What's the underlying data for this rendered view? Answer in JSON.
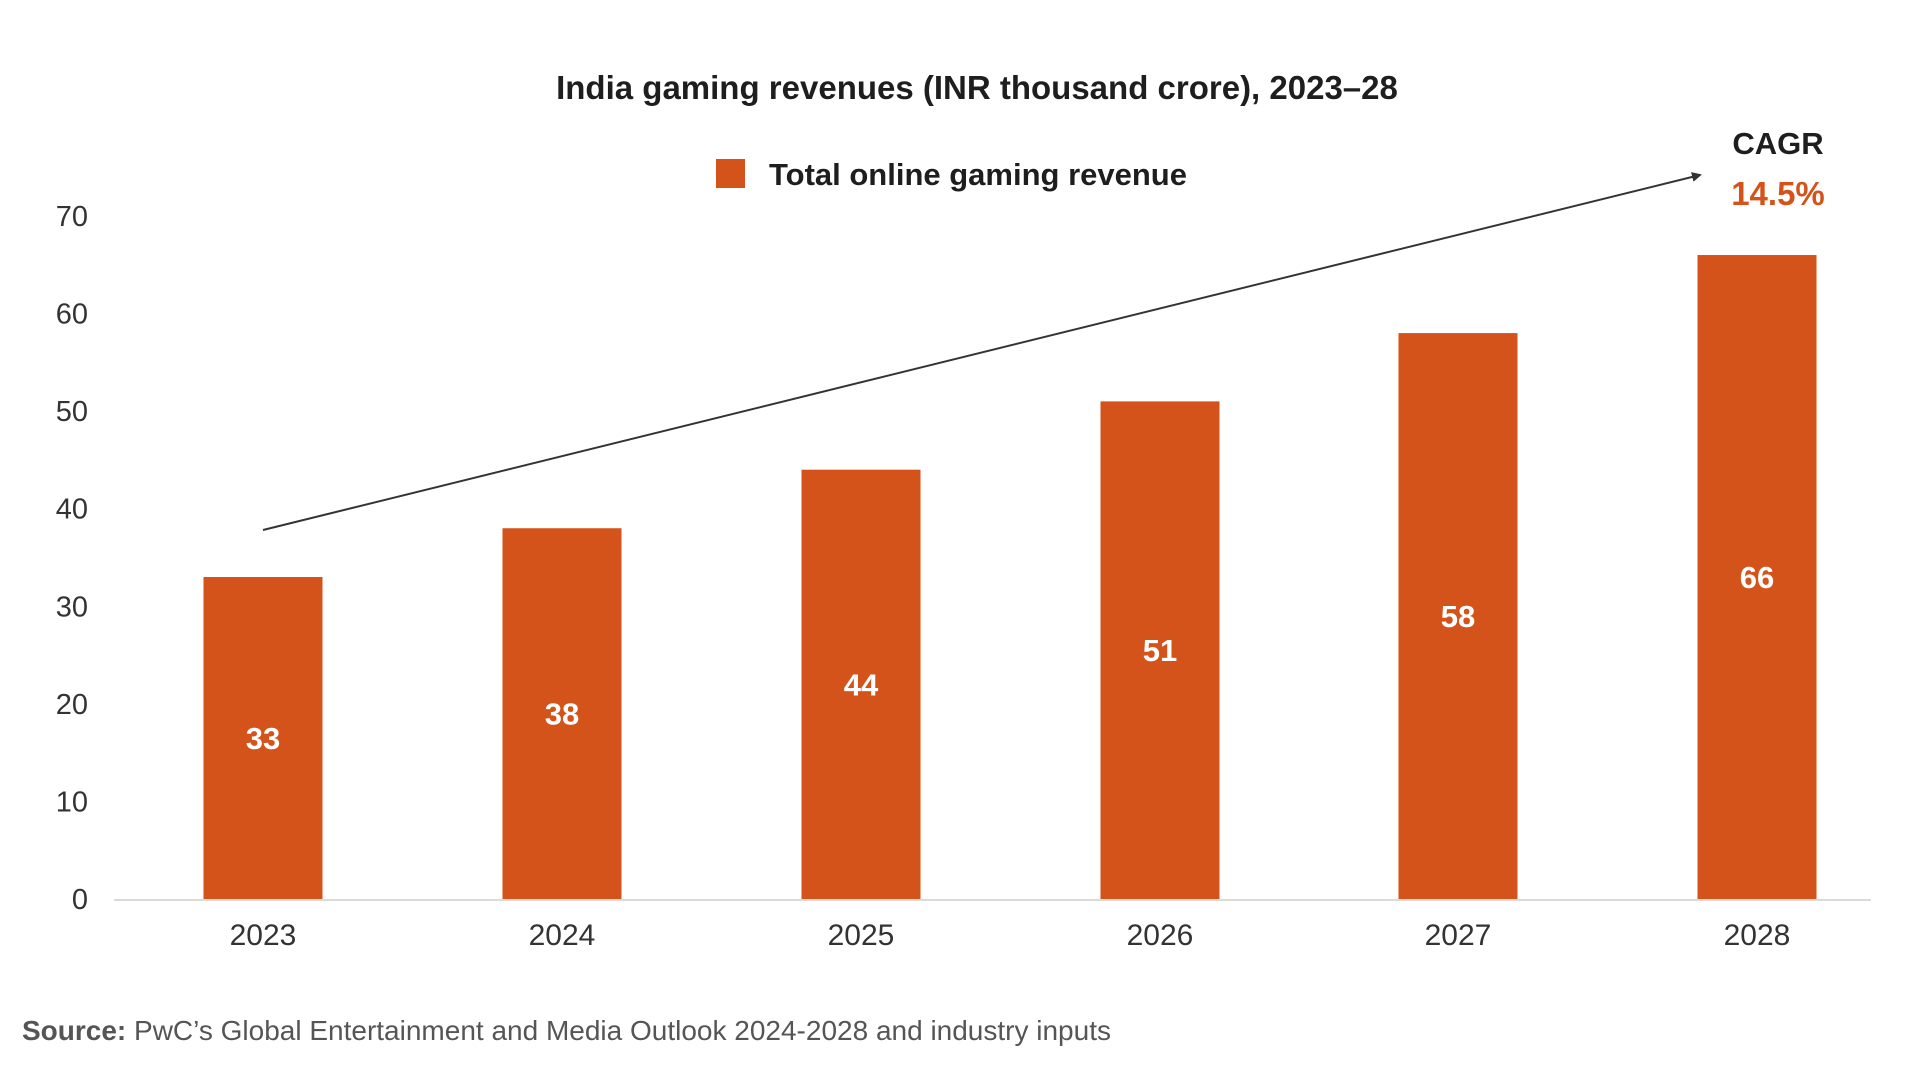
{
  "colors": {
    "bar": "#d4531a",
    "accent": "#d4531a",
    "axis": "#d9dcd6",
    "text": "#1e1e1e",
    "arrow": "#333333"
  },
  "chart_data": {
    "type": "bar",
    "title": "India gaming revenues (INR thousand crore), 2023–28",
    "xlabel": "",
    "ylabel": "",
    "categories": [
      "2023",
      "2024",
      "2025",
      "2026",
      "2027",
      "2028"
    ],
    "series": [
      {
        "name": "Total online gaming revenue",
        "values": [
          33,
          38,
          44,
          51,
          58,
          66
        ],
        "data_labels": [
          "33",
          "38",
          "44",
          "51",
          "58",
          "66"
        ]
      }
    ],
    "ylim": [
      0,
      70
    ],
    "yticks": [
      0,
      10,
      20,
      30,
      40,
      50,
      60,
      70
    ],
    "ytick_labels": [
      "0",
      "10",
      "20",
      "30",
      "40",
      "50",
      "60",
      "70"
    ],
    "grid": false,
    "legend": {
      "position": "top-center",
      "entries": [
        "Total online gaming revenue"
      ]
    },
    "annotations": [
      {
        "type": "trend-arrow",
        "from": "2023",
        "to": "2028",
        "label": "CAGR",
        "value": "14.5%"
      }
    ]
  },
  "annotation": {
    "cagr_label": "CAGR",
    "cagr_value": "14.5%"
  },
  "source": {
    "prefix": "Source:",
    "text": " PwC’s Global Entertainment and Media Outlook 2024-2028 and industry inputs"
  }
}
